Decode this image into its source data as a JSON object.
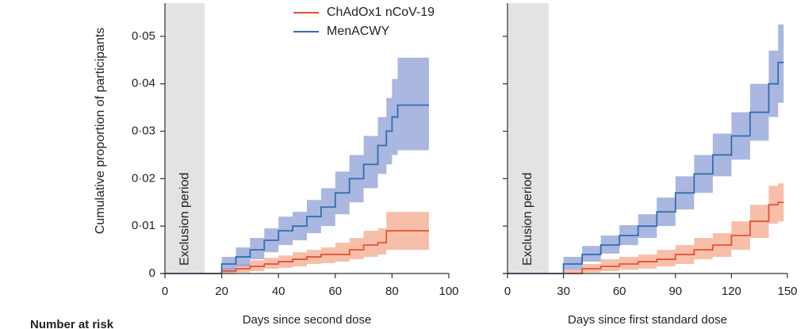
{
  "chart_data": [
    {
      "type": "step",
      "ylabel": "Cumulative proportion of participants",
      "xlabel": "Days since second dose",
      "xlim": [
        0,
        100
      ],
      "xticks": [
        0,
        20,
        40,
        60,
        80,
        100
      ],
      "ylim": [
        0,
        0.057
      ],
      "yticks": [
        0,
        {
          "value": 0.01,
          "label": "0·01"
        },
        {
          "value": 0.02,
          "label": "0·02"
        },
        {
          "value": 0.03,
          "label": "0·03"
        },
        {
          "value": 0.04,
          "label": "0·04"
        },
        {
          "value": 0.05,
          "label": "0·05"
        }
      ],
      "ytick_labels": true,
      "legend": "top",
      "shaded_regions": [
        {
          "label": "Exclusion period",
          "x": [
            0,
            14
          ],
          "color": "#e3e3e3"
        }
      ],
      "x": [
        0,
        14,
        20,
        25,
        30,
        35,
        40,
        45,
        50,
        55,
        60,
        65,
        70,
        75,
        78,
        80,
        82,
        93
      ],
      "series": [
        {
          "name": "ChAdOx1 nCoV-19",
          "color": "#e8503a",
          "band_color": "#f4a98c",
          "values": [
            0,
            0,
            0.0005,
            0.001,
            0.0015,
            0.002,
            0.0025,
            0.003,
            0.0035,
            0.004,
            0.004,
            0.005,
            0.006,
            0.0065,
            0.009,
            0.009,
            0.009,
            0.009
          ],
          "lower": [
            0,
            0,
            0,
            0.0002,
            0.0005,
            0.001,
            0.0012,
            0.0015,
            0.002,
            0.0022,
            0.0025,
            0.003,
            0.0035,
            0.004,
            0.005,
            0.005,
            0.005,
            0.005
          ],
          "upper": [
            0,
            0,
            0.0012,
            0.002,
            0.0028,
            0.0033,
            0.0038,
            0.0045,
            0.005,
            0.0055,
            0.0065,
            0.0075,
            0.009,
            0.0095,
            0.013,
            0.013,
            0.013,
            0.013
          ]
        },
        {
          "name": "MenACWY",
          "color": "#2f6fb0",
          "band_color": "#8d9fd6",
          "values": [
            0,
            0,
            0.002,
            0.0035,
            0.005,
            0.007,
            0.009,
            0.01,
            0.012,
            0.014,
            0.017,
            0.02,
            0.023,
            0.027,
            0.03,
            0.033,
            0.0355,
            0.0355
          ],
          "lower": [
            0,
            0,
            0.0005,
            0.0015,
            0.003,
            0.0045,
            0.006,
            0.007,
            0.0085,
            0.01,
            0.0125,
            0.015,
            0.018,
            0.021,
            0.023,
            0.025,
            0.026,
            0.026
          ],
          "upper": [
            0,
            0,
            0.0035,
            0.0055,
            0.0075,
            0.0095,
            0.012,
            0.013,
            0.0155,
            0.018,
            0.0215,
            0.025,
            0.029,
            0.033,
            0.037,
            0.041,
            0.0455,
            0.0455
          ]
        }
      ]
    },
    {
      "type": "step",
      "xlabel": "Days since first standard dose",
      "xlim": [
        0,
        150
      ],
      "xticks": [
        0,
        30,
        60,
        90,
        120,
        150
      ],
      "ylim": [
        0,
        0.057
      ],
      "yticks": [
        0,
        0.01,
        0.02,
        0.03,
        0.04,
        0.05
      ],
      "ytick_labels": false,
      "shaded_regions": [
        {
          "label": "Exclusion period",
          "x": [
            0,
            22
          ],
          "color": "#e3e3e3"
        }
      ],
      "x": [
        0,
        22,
        30,
        40,
        50,
        60,
        70,
        80,
        90,
        100,
        110,
        120,
        130,
        140,
        145,
        148
      ],
      "series": [
        {
          "name": "ChAdOx1 nCoV-19",
          "color": "#e8503a",
          "band_color": "#f4a98c",
          "values": [
            0,
            0,
            0,
            0.001,
            0.0015,
            0.002,
            0.0025,
            0.003,
            0.004,
            0.005,
            0.006,
            0.008,
            0.011,
            0.0145,
            0.015,
            0.015
          ],
          "lower": [
            0,
            0,
            0,
            0.0002,
            0.0005,
            0.0008,
            0.001,
            0.0015,
            0.002,
            0.003,
            0.0035,
            0.005,
            0.0075,
            0.0105,
            0.011,
            0.011
          ],
          "upper": [
            0,
            0,
            0.0008,
            0.002,
            0.003,
            0.0035,
            0.004,
            0.005,
            0.006,
            0.0075,
            0.0085,
            0.011,
            0.0145,
            0.0185,
            0.019,
            0.019
          ]
        },
        {
          "name": "MenACWY",
          "color": "#2f6fb0",
          "band_color": "#8d9fd6",
          "values": [
            0,
            0,
            0.002,
            0.004,
            0.006,
            0.008,
            0.01,
            0.013,
            0.017,
            0.021,
            0.025,
            0.029,
            0.034,
            0.04,
            0.0445,
            0.0445
          ],
          "lower": [
            0,
            0,
            0.0008,
            0.0025,
            0.0042,
            0.006,
            0.0075,
            0.01,
            0.0135,
            0.017,
            0.0205,
            0.024,
            0.028,
            0.033,
            0.036,
            0.036
          ],
          "upper": [
            0,
            0,
            0.0035,
            0.0058,
            0.008,
            0.0102,
            0.0125,
            0.016,
            0.0205,
            0.025,
            0.0295,
            0.034,
            0.04,
            0.047,
            0.0525,
            0.0525
          ]
        }
      ]
    }
  ],
  "footer": "Number at risk"
}
